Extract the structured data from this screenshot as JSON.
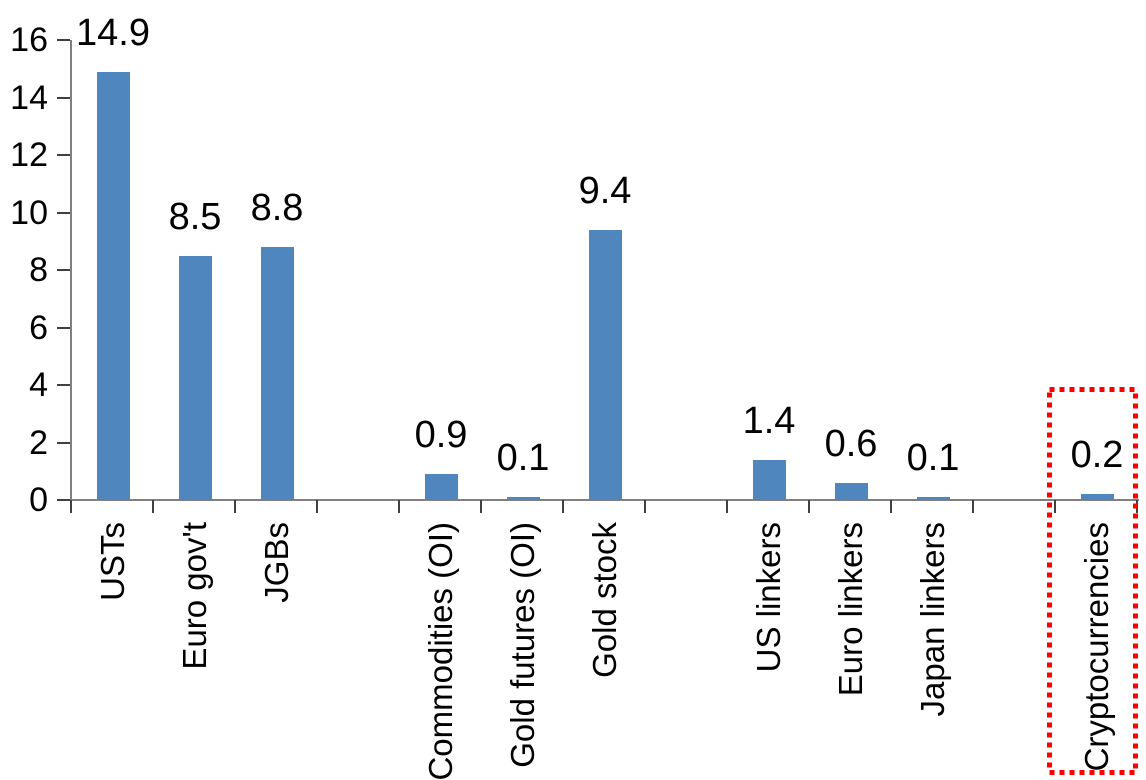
{
  "chart_data": {
    "type": "bar",
    "title": "",
    "xlabel": "",
    "ylabel": "",
    "ylim": [
      0,
      16
    ],
    "yticks": [
      0,
      2,
      4,
      6,
      8,
      10,
      12,
      14,
      16
    ],
    "grid": false,
    "legend": null,
    "categories": [
      "USTs",
      "Euro gov't",
      "JGBs",
      "Commodities (OI)",
      "Gold futures (OI)",
      "Gold stock",
      "US linkers",
      "Euro linkers",
      "Japan linkers",
      "Cryptocurrencies"
    ],
    "values": [
      14.9,
      8.5,
      8.8,
      0.9,
      0.1,
      9.4,
      1.4,
      0.6,
      0.1,
      0.2
    ],
    "value_labels": [
      "14.9",
      "8.5",
      "8.8",
      "0.9",
      "0.1",
      "9.4",
      "1.4",
      "0.6",
      "0.1",
      "0.2"
    ],
    "slots": [
      0,
      1,
      2,
      4,
      5,
      6,
      8,
      9,
      10,
      12
    ],
    "total_slots": 13,
    "groups": [
      [
        "USTs",
        "Euro gov't",
        "JGBs"
      ],
      [
        "Commodities (OI)",
        "Gold futures (OI)",
        "Gold stock"
      ],
      [
        "US linkers",
        "Euro linkers",
        "Japan linkers"
      ],
      [
        "Cryptocurrencies"
      ]
    ],
    "bar_color": "#4E86BD",
    "axis_color": "#808080",
    "tick_color": "#404040",
    "text_color": "#000000",
    "highlight_box": {
      "category": "Cryptocurrencies",
      "color": "#FF0000",
      "style": "dotted"
    }
  }
}
